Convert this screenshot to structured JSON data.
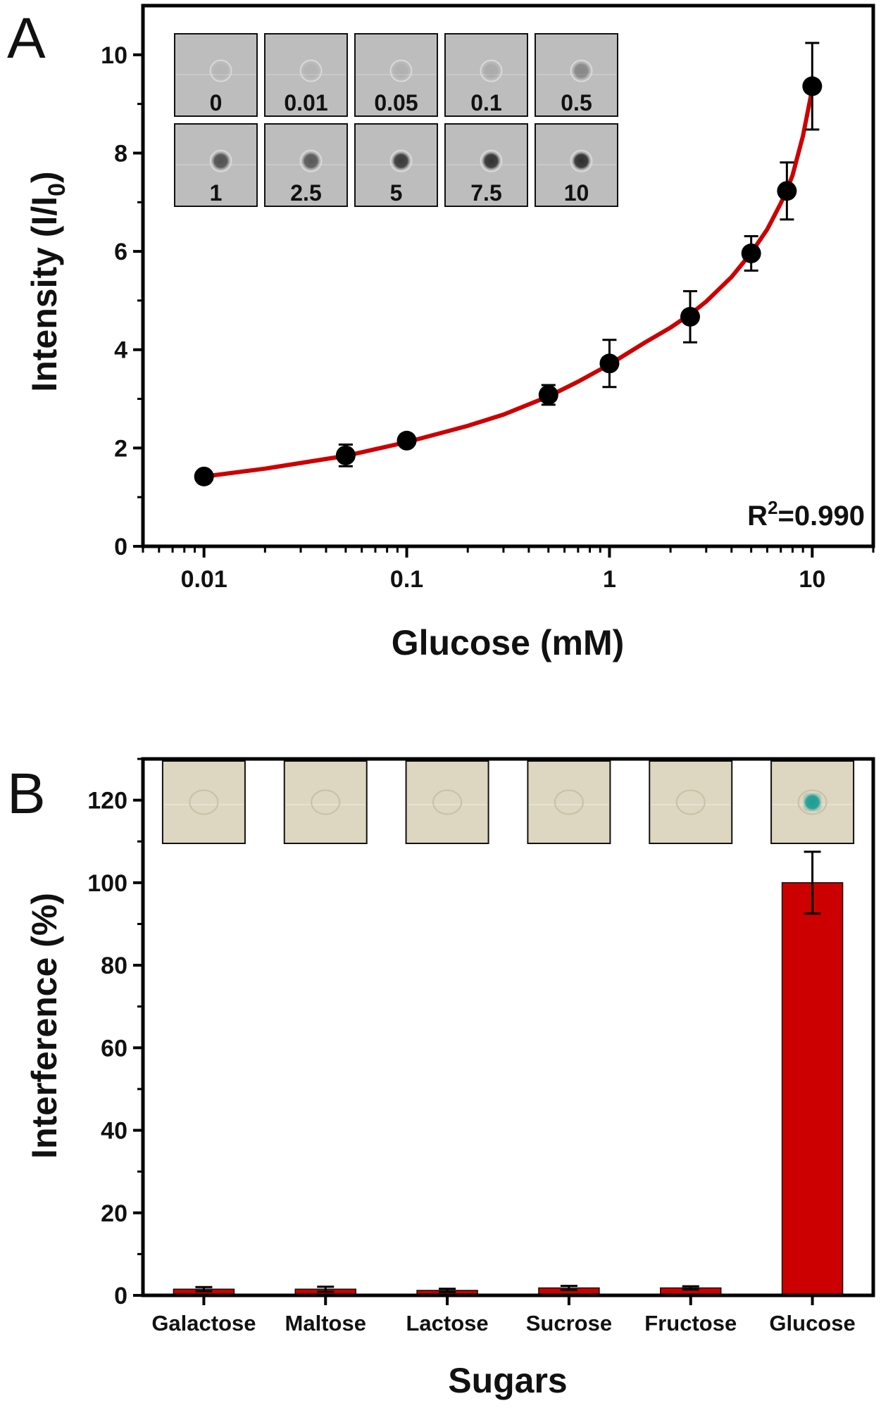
{
  "chart_data": [
    {
      "panel": "A",
      "type": "scatter",
      "xscale": "log",
      "xlabel": "Glucose (mM)",
      "ylabel_main": "Intensity (I/I",
      "ylabel_sub": "0",
      "ylabel_end": ")",
      "xlim": [
        0.005,
        20
      ],
      "ylim": [
        0,
        11
      ],
      "x_ticks": [
        0.01,
        0.1,
        1,
        10
      ],
      "x_tick_labels": [
        "0.01",
        "0.1",
        "1",
        "10"
      ],
      "y_ticks": [
        0,
        2,
        4,
        6,
        8,
        10
      ],
      "y_tick_labels": [
        "0",
        "2",
        "4",
        "6",
        "8",
        "10"
      ],
      "points": [
        {
          "x": 0.01,
          "y": 1.42,
          "err": 0.1
        },
        {
          "x": 0.05,
          "y": 1.85,
          "err": 0.22
        },
        {
          "x": 0.1,
          "y": 2.15,
          "err": 0.12
        },
        {
          "x": 0.5,
          "y": 3.08,
          "err": 0.2
        },
        {
          "x": 1,
          "y": 3.72,
          "err": 0.48
        },
        {
          "x": 2.5,
          "y": 4.67,
          "err": 0.52
        },
        {
          "x": 5,
          "y": 5.96,
          "err": 0.35
        },
        {
          "x": 7.5,
          "y": 7.23,
          "err": 0.58
        },
        {
          "x": 10,
          "y": 9.36,
          "err": 0.88
        }
      ],
      "fit": {
        "x": [
          0.01,
          0.02,
          0.05,
          0.1,
          0.2,
          0.3,
          0.5,
          0.7,
          1,
          1.5,
          2,
          2.5,
          3,
          4,
          5,
          6,
          7,
          7.5,
          8,
          9,
          10
        ],
        "y": [
          1.42,
          1.58,
          1.84,
          2.12,
          2.45,
          2.68,
          3.05,
          3.35,
          3.7,
          4.15,
          4.45,
          4.72,
          4.98,
          5.48,
          5.97,
          6.45,
          6.98,
          7.25,
          7.55,
          8.35,
          9.3
        ],
        "color": "#cc0000"
      },
      "annotation_main": "R",
      "annotation_sup": "2",
      "annotation_end": "=0.990",
      "inset_labels": [
        "0",
        "0.01",
        "0.05",
        "0.1",
        "0.5",
        "1",
        "2.5",
        "5",
        "7.5",
        "10"
      ],
      "inset_spot_darkness": [
        0.05,
        0.06,
        0.08,
        0.12,
        0.35,
        0.7,
        0.65,
        0.85,
        0.9,
        0.92
      ],
      "marker_color": "#000000"
    },
    {
      "panel": "B",
      "type": "bar",
      "xlabel": "Sugars",
      "ylabel": "Interference (%)",
      "ylim": [
        0,
        130
      ],
      "y_ticks": [
        0,
        20,
        40,
        60,
        80,
        100,
        120
      ],
      "y_tick_labels": [
        "0",
        "20",
        "40",
        "60",
        "80",
        "100",
        "120"
      ],
      "categories": [
        "Galactose",
        "Maltose",
        "Lactose",
        "Sucrose",
        "Fructose",
        "Glucose"
      ],
      "values": [
        1.5,
        1.5,
        1.2,
        1.8,
        1.8,
        100
      ],
      "errors": [
        0.5,
        0.6,
        0.4,
        0.5,
        0.4,
        7.5
      ],
      "bar_color": "#cc0000",
      "inset_spot_colors": [
        "none",
        "none",
        "none",
        "none",
        "none",
        "#2aa39a"
      ]
    }
  ]
}
